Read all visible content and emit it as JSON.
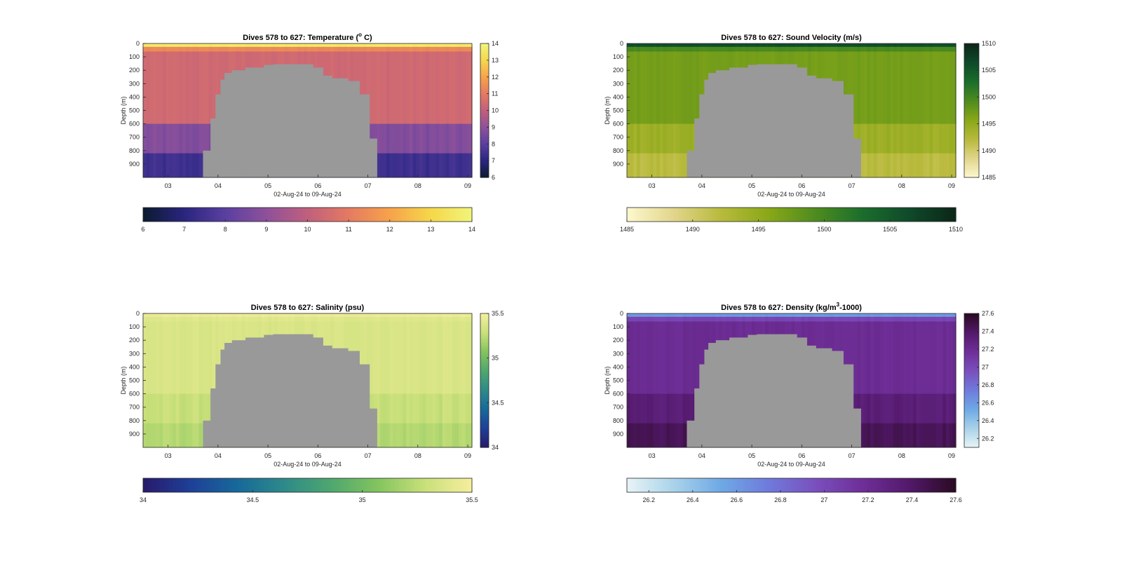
{
  "chart_data": [
    {
      "type": "heatmap",
      "title": "Dives 578 to 627: Temperature (°C)",
      "title_parts": {
        "before": "Dives 578 to 627: Temperature (",
        "sup": "o",
        "after": " C)"
      },
      "xlabel": "02-Aug-24 to 09-Aug-24",
      "ylabel": "Depth (m)",
      "x_ticks": [
        "03",
        "04",
        "05",
        "06",
        "07",
        "08",
        "09"
      ],
      "x_range": [
        "02-Aug-24 12:00",
        "09-Aug-24 02:00"
      ],
      "y_ticks": [
        0,
        100,
        200,
        300,
        400,
        500,
        600,
        700,
        800,
        900
      ],
      "y_range": [
        0,
        1000
      ],
      "y_reversed": true,
      "colorbar_ticks": [
        6,
        7,
        8,
        9,
        10,
        11,
        12,
        13,
        14
      ],
      "colorbar_range": [
        6,
        14
      ],
      "h_colorbar_ticks": [
        "6",
        "7",
        "8",
        "9",
        "10",
        "11",
        "12",
        "13",
        "14"
      ],
      "colormap": [
        "#0b1a2e",
        "#2a2580",
        "#5a3fa0",
        "#8e519a",
        "#c05f7d",
        "#e47a62",
        "#f7a24a",
        "#f5d74a",
        "#f1f57a"
      ],
      "surface_value": 13.6,
      "interior_value": 10.4,
      "deep_value": 7.4,
      "no_data_color": "#999999"
    },
    {
      "type": "heatmap",
      "title": "Dives 578 to 627: Sound Velocity (m/s)",
      "title_parts": {
        "before": "Dives 578 to 627: Sound Velocity (m/s)",
        "sup": "",
        "after": ""
      },
      "xlabel": "02-Aug-24 to 09-Aug-24",
      "ylabel": "Depth (m)",
      "x_ticks": [
        "03",
        "04",
        "05",
        "06",
        "07",
        "08",
        "09"
      ],
      "x_range": [
        "02-Aug-24 12:00",
        "09-Aug-24 02:00"
      ],
      "y_ticks": [
        0,
        100,
        200,
        300,
        400,
        500,
        600,
        700,
        800,
        900
      ],
      "y_range": [
        0,
        1000
      ],
      "y_reversed": true,
      "colorbar_ticks": [
        1485,
        1490,
        1495,
        1500,
        1505,
        1510
      ],
      "colorbar_range": [
        1485,
        1510
      ],
      "h_colorbar_ticks": [
        "1485",
        "1490",
        "1495",
        "1500",
        "1505",
        "1510"
      ],
      "colormap": [
        "#fdf8cf",
        "#e2d58b",
        "#b8ba3c",
        "#8aa818",
        "#4f8c1e",
        "#1c6e2c",
        "#0f4a2a",
        "#0c2618"
      ],
      "surface_value": 1506,
      "interior_value": 1497,
      "deep_value": 1492,
      "no_data_color": "#999999"
    },
    {
      "type": "heatmap",
      "title": "Dives 578 to 627: Salinity (psu)",
      "title_parts": {
        "before": "Dives 578 to 627: Salinity (psu)",
        "sup": "",
        "after": ""
      },
      "xlabel": "02-Aug-24 to 09-Aug-24",
      "ylabel": "Depth (m)",
      "x_ticks": [
        "03",
        "04",
        "05",
        "06",
        "07",
        "08",
        "09"
      ],
      "x_range": [
        "02-Aug-24 12:00",
        "09-Aug-24 02:00"
      ],
      "y_ticks": [
        0,
        100,
        200,
        300,
        400,
        500,
        600,
        700,
        800,
        900
      ],
      "y_range": [
        0,
        1000
      ],
      "y_reversed": true,
      "colorbar_ticks": [
        34,
        34.5,
        35,
        35.5
      ],
      "colorbar_range": [
        34,
        35.5
      ],
      "h_colorbar_ticks": [
        "34",
        "34.5",
        "35",
        "35.5"
      ],
      "colormap": [
        "#281a6b",
        "#1f3f97",
        "#17699a",
        "#2d8a8a",
        "#4ea76e",
        "#83c45e",
        "#c9e07a",
        "#f6ee9e"
      ],
      "surface_value": 35.45,
      "interior_value": 35.36,
      "deep_value": 35.22,
      "no_data_color": "#999999"
    },
    {
      "type": "heatmap",
      "title": "Dives 578 to 627: Density (kg/m³-1000)",
      "title_parts": {
        "before": "Dives 578 to 627: Density (kg/m",
        "sup": "3",
        "after": "-1000)"
      },
      "xlabel": "02-Aug-24 to 09-Aug-24",
      "ylabel": "Depth (m)",
      "x_ticks": [
        "03",
        "04",
        "05",
        "06",
        "07",
        "08",
        "09"
      ],
      "x_range": [
        "02-Aug-24 12:00",
        "09-Aug-24 02:00"
      ],
      "y_ticks": [
        0,
        100,
        200,
        300,
        400,
        500,
        600,
        700,
        800,
        900
      ],
      "y_range": [
        0,
        1000
      ],
      "y_reversed": true,
      "colorbar_ticks": [
        26.2,
        26.4,
        26.6,
        26.8,
        27,
        27.2,
        27.4,
        27.6
      ],
      "colorbar_range": [
        26.1,
        27.6
      ],
      "h_colorbar_ticks": [
        "26.2",
        "26.4",
        "26.6",
        "26.8",
        "27",
        "27.2",
        "27.4",
        "27.6"
      ],
      "colormap": [
        "#e8f4f6",
        "#a9d3ea",
        "#6ea9e5",
        "#6f7bdc",
        "#7a50bd",
        "#6f2f99",
        "#53196b",
        "#2a0a22"
      ],
      "surface_value": 26.6,
      "interior_value": 27.2,
      "deep_value": 27.45,
      "no_data_color": "#999999"
    }
  ]
}
